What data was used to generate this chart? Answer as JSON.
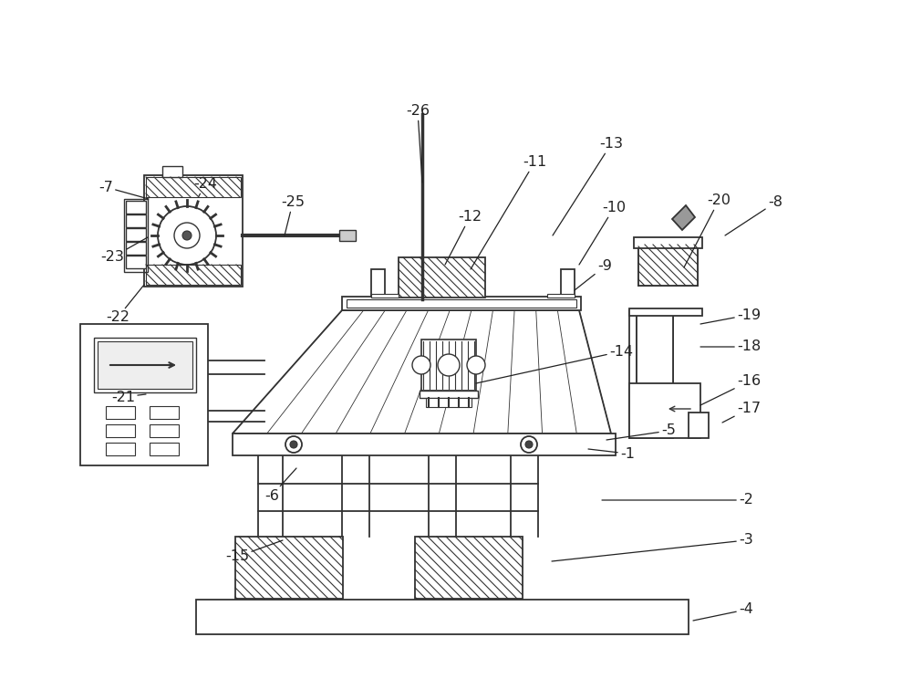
{
  "background_color": "#ffffff",
  "line_color": "#333333",
  "label_color": "#222222",
  "annotations": [
    [
      "1",
      680,
      497,
      645,
      492
    ],
    [
      "2",
      810,
      548,
      660,
      548
    ],
    [
      "3",
      810,
      592,
      605,
      615
    ],
    [
      "4",
      810,
      668,
      760,
      680
    ],
    [
      "5",
      725,
      472,
      665,
      482
    ],
    [
      "6",
      290,
      543,
      325,
      513
    ],
    [
      "7",
      108,
      205,
      163,
      218
    ],
    [
      "8",
      842,
      222,
      795,
      258
    ],
    [
      "9",
      655,
      292,
      630,
      318
    ],
    [
      "10",
      660,
      228,
      635,
      290
    ],
    [
      "11",
      573,
      178,
      516,
      295
    ],
    [
      "12",
      502,
      238,
      488,
      290
    ],
    [
      "13",
      657,
      158,
      606,
      258
    ],
    [
      "14",
      668,
      385,
      522,
      420
    ],
    [
      "15",
      247,
      610,
      310,
      592
    ],
    [
      "16",
      808,
      418,
      768,
      444
    ],
    [
      "17",
      808,
      448,
      792,
      463
    ],
    [
      "18",
      808,
      380,
      768,
      380
    ],
    [
      "19",
      808,
      345,
      768,
      355
    ],
    [
      "20",
      775,
      220,
      750,
      293
    ],
    [
      "21",
      122,
      435,
      160,
      432
    ],
    [
      "22",
      116,
      348,
      158,
      312
    ],
    [
      "23",
      110,
      282,
      162,
      260
    ],
    [
      "24",
      212,
      202,
      218,
      215
    ],
    [
      "25",
      308,
      222,
      312,
      258
    ],
    [
      "26",
      445,
      122,
      463,
      200
    ]
  ]
}
